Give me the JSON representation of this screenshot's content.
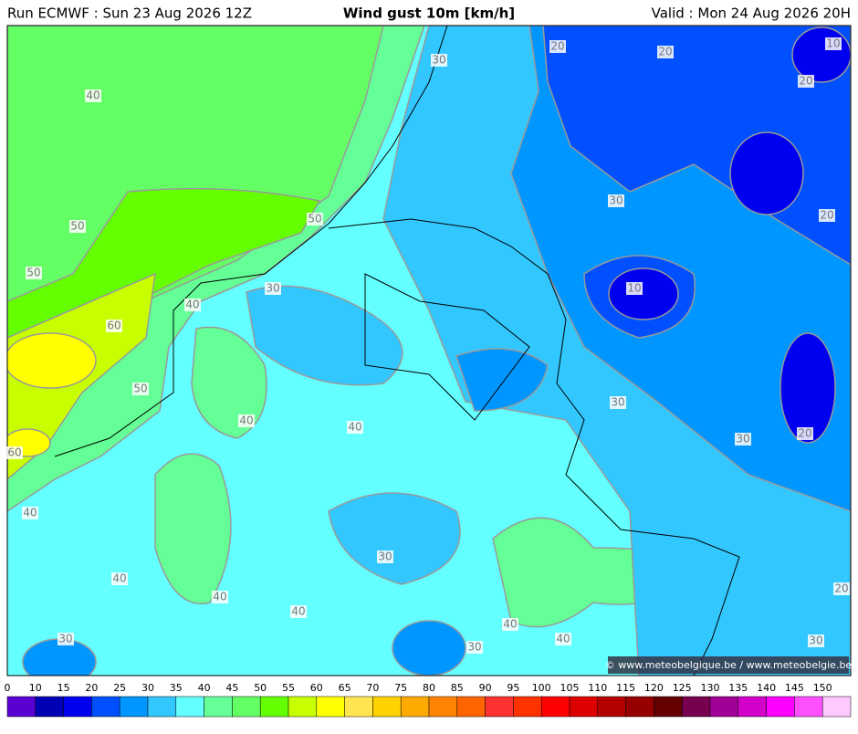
{
  "header": {
    "run": "Run ECMWF : Sun 23 Aug 2026 12Z",
    "title": "Wind gust 10m [km/h]",
    "valid": "Valid : Mon 24 Aug 2026 20H"
  },
  "contour_labels": [
    40,
    30,
    20,
    20,
    10,
    20,
    50,
    50,
    30,
    20,
    50,
    30,
    40,
    10,
    60,
    50,
    30,
    40,
    40,
    20,
    30,
    60,
    40,
    30,
    40,
    40,
    40,
    20,
    40,
    40,
    30,
    30,
    30
  ],
  "colorbar": {
    "labels": [
      0,
      10,
      15,
      20,
      25,
      30,
      35,
      40,
      45,
      50,
      55,
      60,
      65,
      70,
      75,
      80,
      85,
      90,
      95,
      100,
      105,
      110,
      115,
      120,
      125,
      130,
      135,
      140,
      145,
      150
    ],
    "colors": [
      "#5a00d2",
      "#0000b4",
      "#0000f0",
      "#0050ff",
      "#0096ff",
      "#32c8ff",
      "#64ffff",
      "#64ff96",
      "#64ff64",
      "#64ff00",
      "#c8ff00",
      "#ffff00",
      "#ffe650",
      "#ffd200",
      "#ffaa00",
      "#ff8200",
      "#ff6400",
      "#ff3232",
      "#ff3200",
      "#ff0000",
      "#dc0000",
      "#b40000",
      "#960000",
      "#640000",
      "#780050",
      "#a00096",
      "#d200c8",
      "#ff00ff",
      "#ff50ff",
      "#ffc8ff"
    ]
  },
  "credit": "© www.meteobelgique.be / www.meteobelgie.be"
}
